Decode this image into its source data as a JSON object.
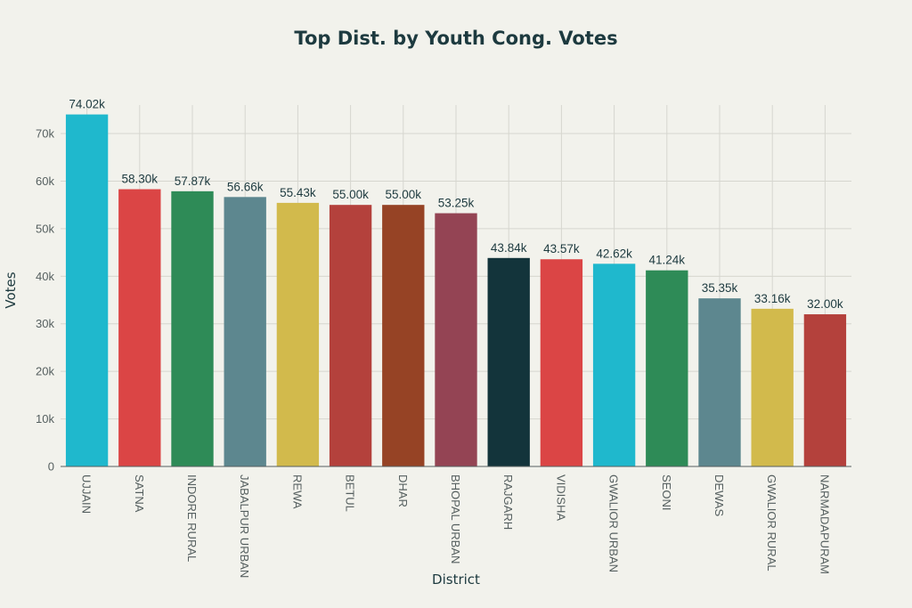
{
  "chart_data": {
    "type": "bar",
    "title": "Top Dist. by Youth Cong. Votes",
    "xlabel": "District",
    "ylabel": "Votes",
    "ylim": [
      0,
      76000
    ],
    "yticks": [
      0,
      10000,
      20000,
      30000,
      40000,
      50000,
      60000,
      70000
    ],
    "ytick_labels": [
      "0",
      "10k",
      "20k",
      "30k",
      "40k",
      "50k",
      "60k",
      "70k"
    ],
    "grid": true,
    "legend": "none",
    "categories": [
      "UJJAIN",
      "SATNA",
      "INDORE RURAL",
      "JABALPUR URBAN",
      "REWA",
      "BETUL",
      "DHAR",
      "BHOPAL URBAN",
      "RAJGARH",
      "VIDISHA",
      "GWALIOR URBAN",
      "SEONI",
      "DEWAS",
      "GWALIOR RURAL",
      "NARMADAPURAM"
    ],
    "values": [
      74020,
      58300,
      57870,
      56660,
      55430,
      55000,
      55000,
      53250,
      43840,
      43570,
      42620,
      41240,
      35350,
      33160,
      32000
    ],
    "value_labels": [
      "74.02k",
      "58.30k",
      "57.87k",
      "56.66k",
      "55.43k",
      "55.00k",
      "55.00k",
      "53.25k",
      "43.84k",
      "43.57k",
      "42.62k",
      "41.24k",
      "35.35k",
      "33.16k",
      "32.00k"
    ],
    "colors": [
      "#1fb8cd",
      "#db4545",
      "#2e8b57",
      "#5d878f",
      "#d2ba4c",
      "#b4413c",
      "#964325",
      "#944454",
      "#13343b",
      "#db4545",
      "#1fb8cd",
      "#2e8b57",
      "#5d878f",
      "#d2ba4c",
      "#b4413c"
    ]
  }
}
